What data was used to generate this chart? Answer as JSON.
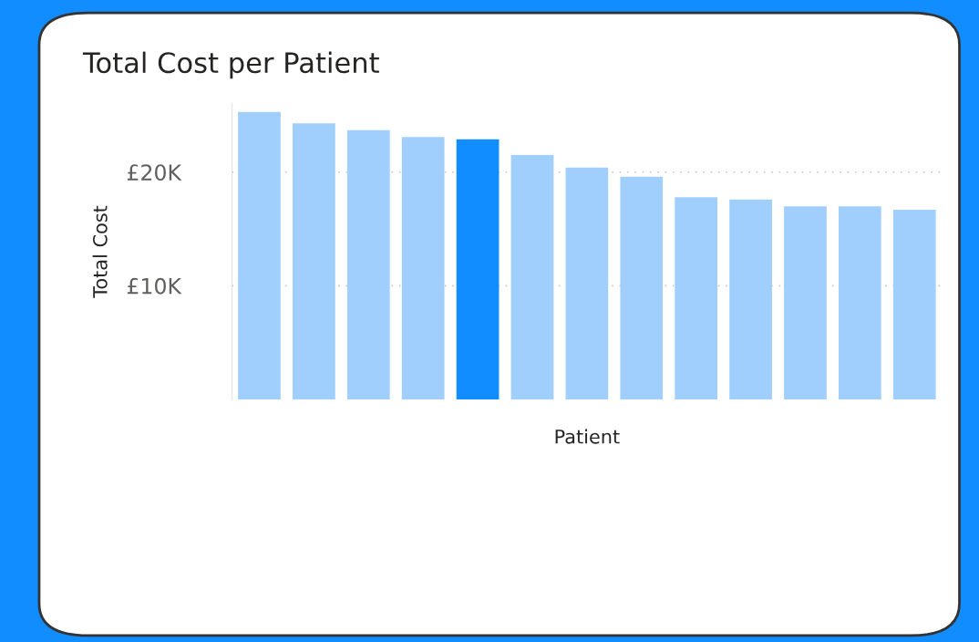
{
  "chart_data": {
    "type": "bar",
    "title": "Total Cost per Patient",
    "xlabel": "Patient",
    "ylabel": "Total Cost",
    "categories": [
      null,
      null,
      null,
      null,
      null,
      null,
      null,
      null,
      null,
      null,
      null,
      null,
      null
    ],
    "values": [
      25300,
      24300,
      23700,
      23100,
      22900,
      21500,
      20400,
      19600,
      17800,
      17600,
      17000,
      17000,
      16700
    ],
    "colors": [
      "#a0cffe",
      "#a0cffe",
      "#a0cffe",
      "#a0cffe",
      "#118dff",
      "#a0cffe",
      "#a0cffe",
      "#a0cffe",
      "#a0cffe",
      "#a0cffe",
      "#a0cffe",
      "#a0cffe",
      "#a0cffe"
    ],
    "ylim": [
      0,
      26000
    ],
    "yticks": [
      {
        "value": 10000,
        "label": "£10K"
      },
      {
        "value": 20000,
        "label": "£20K"
      }
    ],
    "grid": "y",
    "legend": false
  }
}
